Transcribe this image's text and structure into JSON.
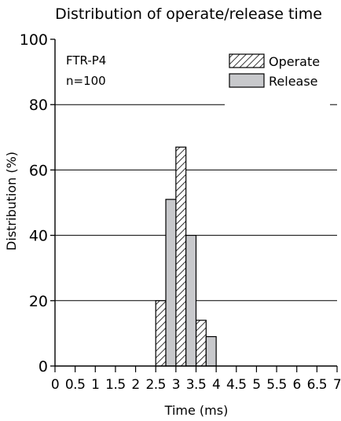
{
  "chart_data": {
    "type": "bar",
    "title": "Distribution of operate/release time",
    "xlabel": "Time (ms)",
    "ylabel": "Distribution (%)",
    "annotation": [
      "FTR-P4",
      "n=100"
    ],
    "xlim": [
      0,
      7
    ],
    "ylim": [
      0,
      100
    ],
    "x_ticks": [
      "0",
      "0.5",
      "1",
      "1.5",
      "2",
      "2.5",
      "3",
      "3.5",
      "4",
      "4.5",
      "5",
      "5.5",
      "6",
      "6.5",
      "7"
    ],
    "y_ticks": [
      "0",
      "20",
      "40",
      "60",
      "80",
      "100"
    ],
    "grid": "horizontal",
    "legend_position": "top-right",
    "bin_width": 0.25,
    "series": [
      {
        "name": "Operate",
        "pattern": "hatched",
        "color": "#ffffff",
        "x": [
          2.5,
          3.0,
          3.5
        ],
        "values": [
          20,
          67,
          14
        ]
      },
      {
        "name": "Release",
        "pattern": "solid",
        "color": "#c8c9cc",
        "x": [
          2.75,
          3.25,
          3.75
        ],
        "values": [
          51,
          40,
          9
        ]
      }
    ]
  }
}
